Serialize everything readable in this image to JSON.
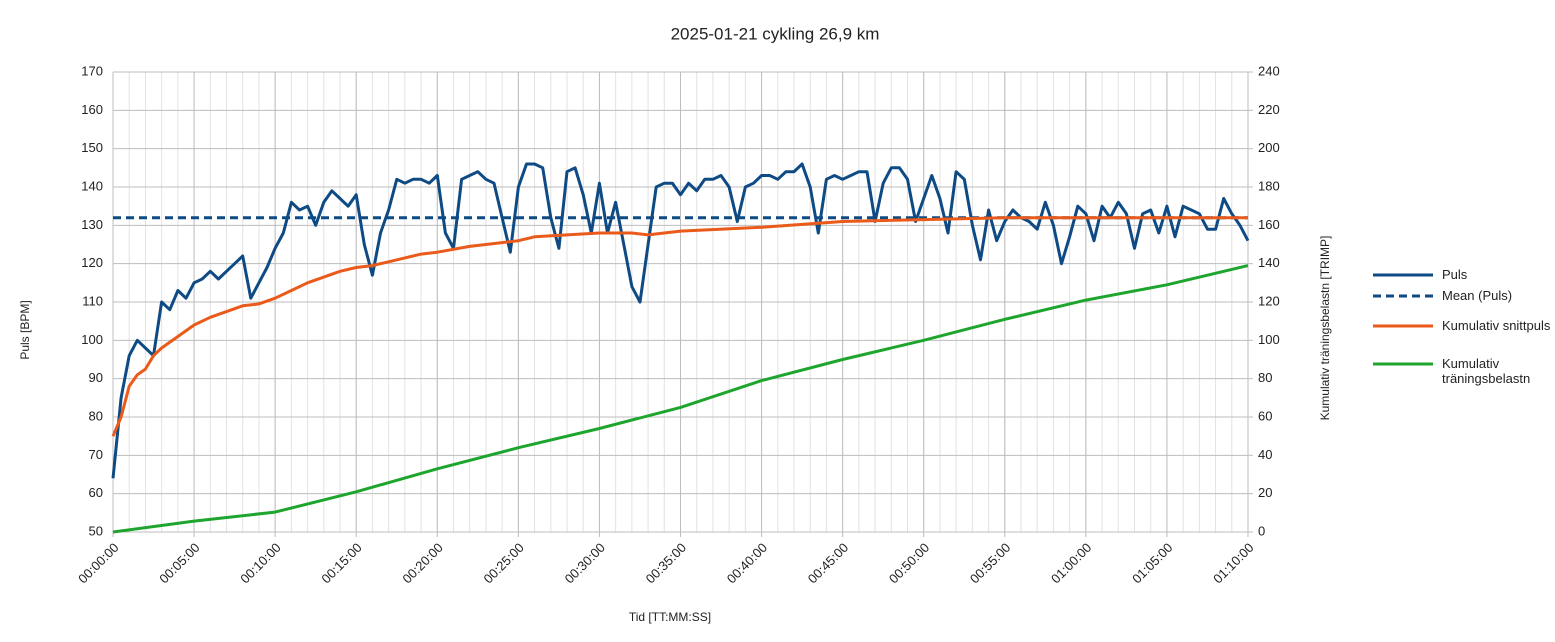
{
  "chart_data": {
    "type": "line",
    "title": "2025-01-21 cykling 26,9 km",
    "xlabel": "Tid [TT:MM:SS]",
    "ylabel": "Puls [BPM]",
    "y2label": "Kumulativ träningsbelastn [TRIMP]",
    "xlim": [
      0,
      70
    ],
    "xticks": [
      {
        "value": 0,
        "label": "00:00:00"
      },
      {
        "value": 5,
        "label": "00:05:00"
      },
      {
        "value": 10,
        "label": "00:10:00"
      },
      {
        "value": 15,
        "label": "00:15:00"
      },
      {
        "value": 20,
        "label": "00:20:00"
      },
      {
        "value": 25,
        "label": "00:25:00"
      },
      {
        "value": 30,
        "label": "00:30:00"
      },
      {
        "value": 35,
        "label": "00:35:00"
      },
      {
        "value": 40,
        "label": "00:40:00"
      },
      {
        "value": 45,
        "label": "00:45:00"
      },
      {
        "value": 50,
        "label": "00:50:00"
      },
      {
        "value": 55,
        "label": "00:55:00"
      },
      {
        "value": 60,
        "label": "01:00:00"
      },
      {
        "value": 65,
        "label": "01:05:00"
      },
      {
        "value": 70,
        "label": "01:10:00"
      }
    ],
    "x_minor_step": 1,
    "ylim": [
      50,
      170
    ],
    "yticks": [
      50,
      60,
      70,
      80,
      90,
      100,
      110,
      120,
      130,
      140,
      150,
      160,
      170
    ],
    "y2lim": [
      0,
      240
    ],
    "y2ticks": [
      0,
      20,
      40,
      60,
      80,
      100,
      120,
      140,
      160,
      180,
      200,
      220,
      240
    ],
    "grid": true,
    "legend": "right",
    "x": [
      0,
      0.5,
      1,
      1.5,
      2,
      2.5,
      3,
      3.5,
      4,
      4.5,
      5,
      5.5,
      6,
      6.5,
      7,
      7.5,
      8,
      8.5,
      9,
      9.5,
      10,
      10.5,
      11,
      11.5,
      12,
      12.5,
      13,
      13.5,
      14,
      14.5,
      15,
      15.5,
      16,
      16.5,
      17,
      17.5,
      18,
      18.5,
      19,
      19.5,
      20,
      20.5,
      21,
      21.5,
      22,
      22.5,
      23,
      23.5,
      24,
      24.5,
      25,
      25.5,
      26,
      26.5,
      27,
      27.5,
      28,
      28.5,
      29,
      29.5,
      30,
      30.5,
      31,
      31.5,
      32,
      32.5,
      33,
      33.5,
      34,
      34.5,
      35,
      35.5,
      36,
      36.5,
      37,
      37.5,
      38,
      38.5,
      39,
      39.5,
      40,
      40.5,
      41,
      41.5,
      42,
      42.5,
      43,
      43.5,
      44,
      44.5,
      45,
      45.5,
      46,
      46.5,
      47,
      47.5,
      48,
      48.5,
      49,
      49.5,
      50,
      50.5,
      51,
      51.5,
      52,
      52.5,
      53,
      53.5,
      54,
      54.5,
      55,
      55.5,
      56,
      56.5,
      57,
      57.5,
      58,
      58.5,
      59,
      59.5,
      60,
      60.5,
      61,
      61.5,
      62,
      62.5,
      63,
      63.5,
      64,
      64.5,
      65,
      65.5,
      66,
      66.5,
      67,
      67.5,
      68,
      68.5,
      69,
      69.5,
      70
    ],
    "series": [
      {
        "name": "Puls",
        "color": "#0e4a84",
        "dash": false,
        "values": [
          64,
          85,
          96,
          100,
          98,
          96,
          110,
          108,
          113,
          111,
          115,
          116,
          118,
          116,
          118,
          120,
          122,
          111,
          115,
          119,
          124,
          128,
          136,
          134,
          135,
          130,
          136,
          139,
          137,
          135,
          138,
          125,
          117,
          128,
          134,
          142,
          141,
          142,
          142,
          141,
          143,
          128,
          124,
          142,
          143,
          144,
          142,
          141,
          132,
          123,
          140,
          146,
          146,
          145,
          132,
          124,
          144,
          145,
          138,
          128,
          141,
          128,
          136,
          125,
          114,
          110,
          125,
          140,
          141,
          141,
          138,
          141,
          139,
          142,
          142,
          143,
          140,
          131,
          140,
          141,
          143,
          143,
          142,
          144,
          144,
          146,
          140,
          128,
          142,
          143,
          142,
          143,
          144,
          144,
          131,
          141,
          145,
          145,
          142,
          131,
          137,
          143,
          137,
          128,
          144,
          142,
          130,
          121,
          134,
          126,
          131,
          134,
          132,
          131,
          129,
          136,
          130,
          120,
          127,
          135,
          133,
          126,
          135,
          132,
          136,
          133,
          124,
          133,
          134,
          128,
          135,
          127,
          135,
          134,
          133,
          129,
          129,
          137,
          133,
          130,
          126
        ]
      },
      {
        "name": "Mean (Puls)",
        "color": "#0e4a84",
        "dash": true,
        "x": [
          0,
          70
        ],
        "values": [
          132,
          132
        ]
      },
      {
        "name": "Kumulativ snittpuls",
        "color": "#ea5a1a",
        "dash": false,
        "x": [
          0,
          0.5,
          1,
          1.5,
          2,
          2.5,
          3,
          4,
          5,
          6,
          7,
          8,
          9,
          10,
          11,
          12,
          13,
          14,
          15,
          16,
          17,
          18,
          19,
          20,
          22,
          24,
          25,
          26,
          28,
          30,
          32,
          33,
          35,
          40,
          45,
          50,
          55,
          60,
          65,
          70
        ],
        "values": [
          75,
          80,
          88,
          91,
          92.5,
          96,
          98,
          101,
          104,
          106,
          107.5,
          109,
          109.5,
          111,
          113,
          115,
          116.5,
          118,
          119,
          119.5,
          120.5,
          121.5,
          122.5,
          123,
          124.5,
          125.5,
          126,
          127,
          127.5,
          128,
          128,
          127.5,
          128.5,
          129.5,
          131,
          131.5,
          132,
          132,
          132,
          132
        ]
      },
      {
        "name": "Kumulativ träningsbelastn",
        "color": "#1ea52e",
        "dash": false,
        "axis": "y2",
        "x": [
          0,
          5,
          10,
          15,
          20,
          25,
          30,
          35,
          40,
          45,
          50,
          55,
          60,
          65,
          70
        ],
        "values": [
          0,
          5.7,
          10.4,
          21,
          33,
          44,
          54,
          65,
          79,
          90,
          100,
          111,
          121,
          129,
          139
        ]
      }
    ]
  }
}
